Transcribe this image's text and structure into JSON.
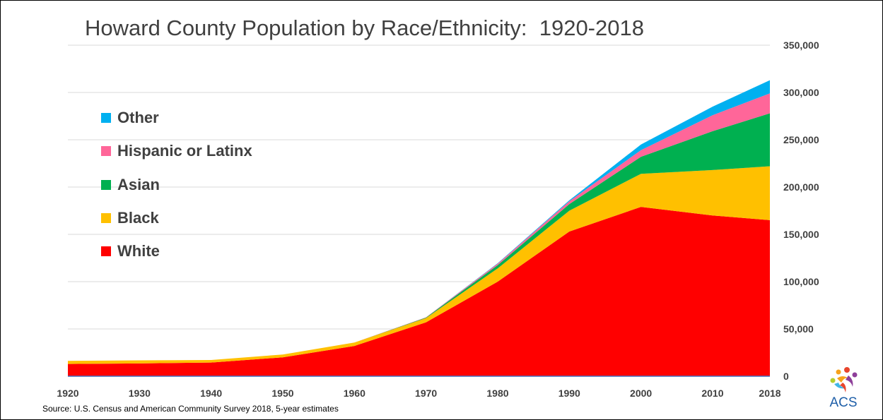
{
  "title": "Howard County Population by Race/Ethnicity:  1920-2018",
  "source": "Source: U.S. Census and American Community Survey 2018, 5-year estimates",
  "logo": {
    "text": "ACS"
  },
  "chart_data": {
    "type": "area",
    "stacked": true,
    "title": "Howard County Population by Race/Ethnicity:  1920-2018",
    "x": [
      1920,
      1930,
      1940,
      1950,
      1960,
      1970,
      1980,
      1990,
      2000,
      2010,
      2018
    ],
    "x_ticks": [
      "1920",
      "1930",
      "1940",
      "1950",
      "1960",
      "1970",
      "1980",
      "1990",
      "2000",
      "2010",
      "2018"
    ],
    "ylim": [
      0,
      350000
    ],
    "y_ticks": [
      "0",
      "50,000",
      "100,000",
      "150,000",
      "200,000",
      "250,000",
      "300,000",
      "350,000"
    ],
    "y_axis_position": "right",
    "grid": true,
    "legend_position": "left",
    "series": [
      {
        "name": "White",
        "color": "#ff0000",
        "values": [
          13000,
          13500,
          14500,
          20000,
          32000,
          57000,
          100000,
          153000,
          179000,
          170000,
          165000
        ]
      },
      {
        "name": "Black",
        "color": "#ffc000",
        "values": [
          3300,
          3300,
          2700,
          3000,
          3600,
          4500,
          14000,
          22000,
          35000,
          48000,
          57000
        ]
      },
      {
        "name": "Asian",
        "color": "#00b050",
        "values": [
          0,
          0,
          0,
          0,
          0,
          500,
          3500,
          7000,
          18000,
          41000,
          56000
        ]
      },
      {
        "name": "Hispanic or Latinx",
        "color": "#ff6699",
        "values": [
          0,
          0,
          0,
          0,
          0,
          300,
          1500,
          3000,
          7000,
          17000,
          21000
        ]
      },
      {
        "name": "Other",
        "color": "#00b0f0",
        "values": [
          0,
          0,
          0,
          0,
          0,
          0,
          500,
          1000,
          6000,
          9000,
          14000
        ]
      }
    ],
    "legend": [
      {
        "name": "Other",
        "color": "#00b0f0"
      },
      {
        "name": "Hispanic or Latinx",
        "color": "#ff6699"
      },
      {
        "name": "Asian",
        "color": "#00b050"
      },
      {
        "name": "Black",
        "color": "#ffc000"
      },
      {
        "name": "White",
        "color": "#ff0000"
      }
    ]
  }
}
